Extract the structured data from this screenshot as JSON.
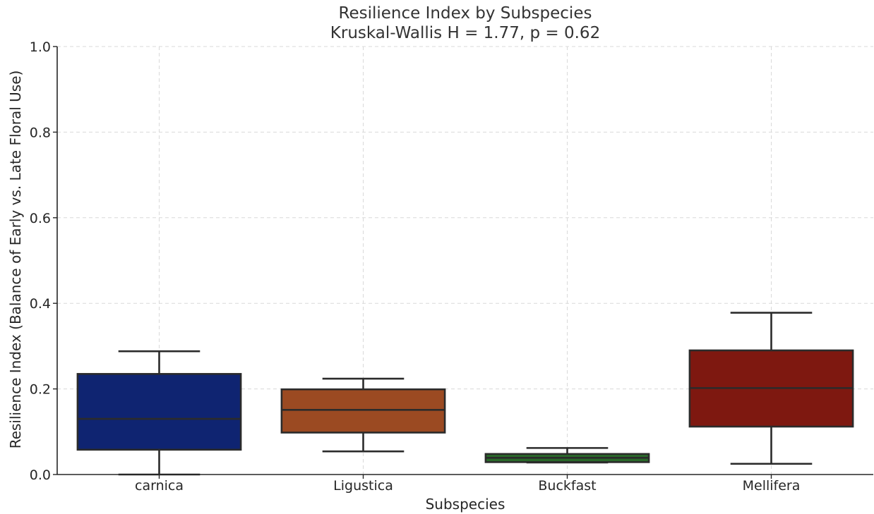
{
  "chart_data": {
    "type": "box",
    "title": "Resilience Index by Subspecies",
    "subtitle": "Kruskal-Wallis H = 1.77, p = 0.62",
    "xlabel": "Subspecies",
    "ylabel": "Resilience Index (Balance of Early vs. Late Floral Use)",
    "ylim": [
      0,
      1.0
    ],
    "yticks": [
      "0.0",
      "0.2",
      "0.4",
      "0.6",
      "0.8",
      "1.0"
    ],
    "grid": true,
    "categories": [
      "carnica",
      "Ligustica",
      "Buckfast",
      "Mellifera"
    ],
    "boxes": [
      {
        "category": "carnica",
        "whisker_low": 0.0,
        "q1": 0.058,
        "median": 0.13,
        "q3": 0.235,
        "whisker_high": 0.288,
        "color": "#0f2471"
      },
      {
        "category": "Ligustica",
        "whisker_low": 0.054,
        "q1": 0.098,
        "median": 0.151,
        "q3": 0.199,
        "whisker_high": 0.224,
        "color": "#9b4a22"
      },
      {
        "category": "Buckfast",
        "whisker_low": 0.028,
        "q1": 0.029,
        "median": 0.039,
        "q3": 0.048,
        "whisker_high": 0.062,
        "color": "#2a6a2a"
      },
      {
        "category": "Mellifera",
        "whisker_low": 0.025,
        "q1": 0.112,
        "median": 0.202,
        "q3": 0.29,
        "whisker_high": 0.378,
        "color": "#7e1810"
      }
    ]
  }
}
